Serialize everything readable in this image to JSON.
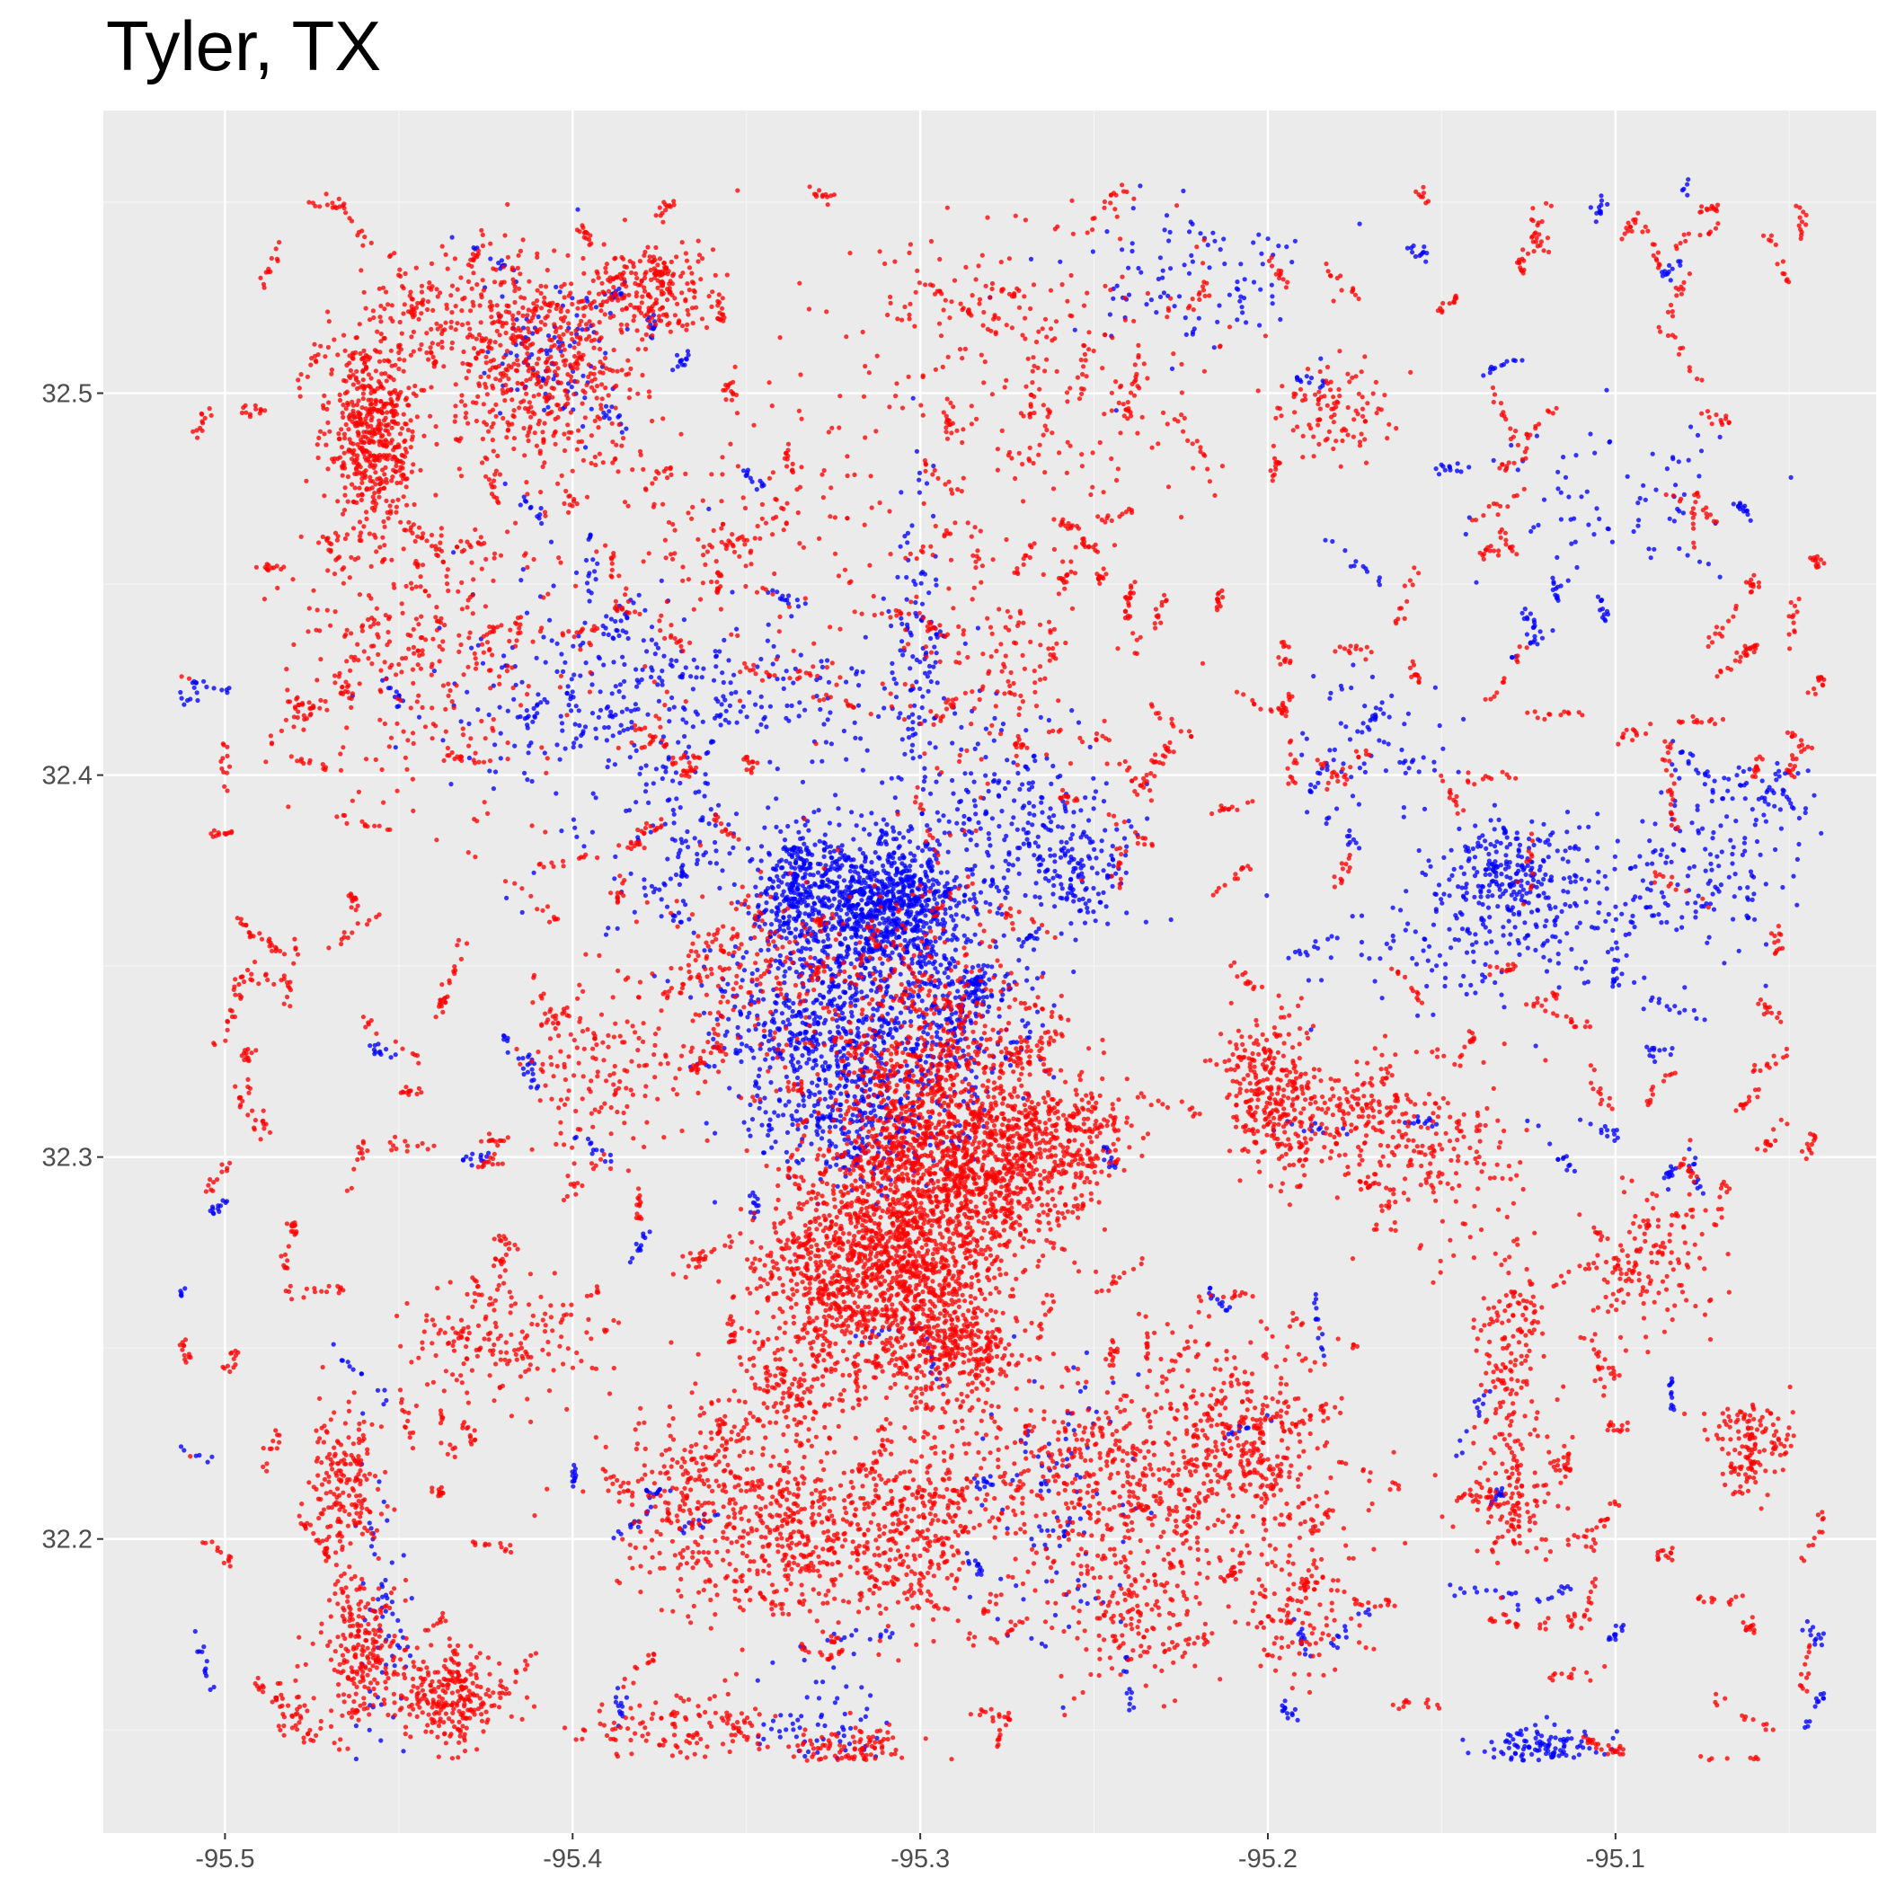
{
  "title": "Tyler, TX",
  "colors": {
    "panel_background": "#EBEBEB",
    "grid_major": "#FFFFFF",
    "grid_minor": "#F5F5F5",
    "tick_text": "#4D4D4D",
    "series_red": "#FF0000",
    "series_blue": "#0000FF"
  },
  "chart_data": {
    "type": "scatter",
    "title": "Tyler, TX",
    "xlabel": "",
    "ylabel": "",
    "xlim": [
      -95.535,
      -95.025
    ],
    "ylim": [
      32.123,
      32.574
    ],
    "x_ticks": [
      -95.5,
      -95.4,
      -95.3,
      -95.2,
      -95.1
    ],
    "x_tick_labels": [
      "-95.5",
      "-95.4",
      "-95.3",
      "-95.2",
      "-95.1"
    ],
    "y_ticks": [
      32.2,
      32.3,
      32.4,
      32.5
    ],
    "y_tick_labels": [
      "32.2",
      "32.3",
      "32.4",
      "32.5"
    ],
    "grid": true,
    "legend": "none",
    "series": [
      {
        "color": "#FF0000",
        "clusters": [
          {
            "x": -95.458,
            "y": 32.49,
            "sx": 0.006,
            "sy": 0.014,
            "n": 520
          },
          {
            "x": -95.405,
            "y": 32.505,
            "sx": 0.014,
            "sy": 0.014,
            "n": 420
          },
          {
            "x": -95.378,
            "y": 32.528,
            "sx": 0.01,
            "sy": 0.006,
            "n": 200
          },
          {
            "x": -95.43,
            "y": 32.52,
            "sx": 0.012,
            "sy": 0.01,
            "n": 150
          },
          {
            "x": -95.3,
            "y": 32.32,
            "sx": 0.016,
            "sy": 0.022,
            "n": 800
          },
          {
            "x": -95.285,
            "y": 32.3,
            "sx": 0.015,
            "sy": 0.015,
            "n": 500
          },
          {
            "x": -95.32,
            "y": 32.27,
            "sx": 0.014,
            "sy": 0.01,
            "n": 650
          },
          {
            "x": -95.295,
            "y": 32.265,
            "sx": 0.01,
            "sy": 0.018,
            "n": 550
          },
          {
            "x": -95.278,
            "y": 32.295,
            "sx": 0.01,
            "sy": 0.012,
            "n": 300
          },
          {
            "x": -95.258,
            "y": 32.305,
            "sx": 0.01,
            "sy": 0.008,
            "n": 250
          },
          {
            "x": -95.288,
            "y": 32.25,
            "sx": 0.008,
            "sy": 0.005,
            "n": 150
          },
          {
            "x": -95.335,
            "y": 32.24,
            "sx": 0.01,
            "sy": 0.01,
            "n": 200
          },
          {
            "x": -95.31,
            "y": 32.29,
            "sx": 0.01,
            "sy": 0.01,
            "n": 250
          },
          {
            "x": -95.24,
            "y": 32.215,
            "sx": 0.025,
            "sy": 0.015,
            "n": 600
          },
          {
            "x": -95.205,
            "y": 32.225,
            "sx": 0.012,
            "sy": 0.012,
            "n": 250
          },
          {
            "x": -95.36,
            "y": 32.21,
            "sx": 0.015,
            "sy": 0.015,
            "n": 350
          },
          {
            "x": -95.33,
            "y": 32.2,
            "sx": 0.014,
            "sy": 0.01,
            "n": 300
          },
          {
            "x": -95.3,
            "y": 32.2,
            "sx": 0.008,
            "sy": 0.012,
            "n": 200
          },
          {
            "x": -95.462,
            "y": 32.17,
            "sx": 0.006,
            "sy": 0.01,
            "n": 200
          },
          {
            "x": -95.465,
            "y": 32.215,
            "sx": 0.005,
            "sy": 0.01,
            "n": 150
          },
          {
            "x": -95.435,
            "y": 32.158,
            "sx": 0.008,
            "sy": 0.006,
            "n": 250
          },
          {
            "x": -95.2,
            "y": 32.318,
            "sx": 0.006,
            "sy": 0.01,
            "n": 250
          },
          {
            "x": -95.178,
            "y": 32.31,
            "sx": 0.012,
            "sy": 0.008,
            "n": 180
          },
          {
            "x": -95.13,
            "y": 32.21,
            "sx": 0.006,
            "sy": 0.008,
            "n": 120
          },
          {
            "x": -95.13,
            "y": 32.245,
            "sx": 0.005,
            "sy": 0.015,
            "n": 150
          },
          {
            "x": -95.06,
            "y": 32.225,
            "sx": 0.006,
            "sy": 0.006,
            "n": 120
          },
          {
            "x": -95.18,
            "y": 32.495,
            "sx": 0.008,
            "sy": 0.006,
            "n": 100
          },
          {
            "x": -95.35,
            "y": 32.35,
            "sx": 0.015,
            "sy": 0.012,
            "n": 200
          },
          {
            "x": -95.39,
            "y": 32.32,
            "sx": 0.012,
            "sy": 0.012,
            "n": 150
          },
          {
            "x": -95.42,
            "y": 32.25,
            "sx": 0.015,
            "sy": 0.008,
            "n": 150
          },
          {
            "x": -95.15,
            "y": 32.3,
            "sx": 0.012,
            "sy": 0.012,
            "n": 150
          },
          {
            "x": -95.09,
            "y": 32.27,
            "sx": 0.01,
            "sy": 0.01,
            "n": 120
          },
          {
            "x": -95.44,
            "y": 32.43,
            "sx": 0.02,
            "sy": 0.02,
            "n": 250
          },
          {
            "x": -95.35,
            "y": 32.46,
            "sx": 0.02,
            "sy": 0.02,
            "n": 150
          },
          {
            "x": -95.27,
            "y": 32.51,
            "sx": 0.03,
            "sy": 0.025,
            "n": 250
          },
          {
            "x": -95.19,
            "y": 32.18,
            "sx": 0.01,
            "sy": 0.01,
            "n": 120
          },
          {
            "x": -95.24,
            "y": 32.18,
            "sx": 0.01,
            "sy": 0.01,
            "n": 150
          },
          {
            "x": -95.28,
            "y": 32.43,
            "sx": 0.015,
            "sy": 0.015,
            "n": 120
          },
          {
            "x": -95.37,
            "y": 32.15,
            "sx": 0.015,
            "sy": 0.005,
            "n": 120
          },
          {
            "x": -95.32,
            "y": 32.145,
            "sx": 0.01,
            "sy": 0.003,
            "n": 100
          }
        ],
        "background_count": 4200
      },
      {
        "color": "#0000FF",
        "clusters": [
          {
            "x": -95.31,
            "y": 32.365,
            "sx": 0.012,
            "sy": 0.01,
            "n": 900
          },
          {
            "x": -95.335,
            "y": 32.37,
            "sx": 0.007,
            "sy": 0.008,
            "n": 300
          },
          {
            "x": -95.33,
            "y": 32.335,
            "sx": 0.015,
            "sy": 0.01,
            "n": 450
          },
          {
            "x": -95.315,
            "y": 32.31,
            "sx": 0.016,
            "sy": 0.009,
            "n": 350
          },
          {
            "x": -95.29,
            "y": 32.34,
            "sx": 0.012,
            "sy": 0.01,
            "n": 300
          },
          {
            "x": -95.255,
            "y": 32.375,
            "sx": 0.008,
            "sy": 0.008,
            "n": 150
          },
          {
            "x": -95.275,
            "y": 32.395,
            "sx": 0.015,
            "sy": 0.01,
            "n": 150
          },
          {
            "x": -95.13,
            "y": 32.375,
            "sx": 0.01,
            "sy": 0.006,
            "n": 200
          },
          {
            "x": -95.13,
            "y": 32.36,
            "sx": 0.025,
            "sy": 0.01,
            "n": 200
          },
          {
            "x": -95.08,
            "y": 32.37,
            "sx": 0.02,
            "sy": 0.01,
            "n": 120
          },
          {
            "x": -95.06,
            "y": 32.395,
            "sx": 0.015,
            "sy": 0.005,
            "n": 80
          },
          {
            "x": -95.1,
            "y": 32.47,
            "sx": 0.02,
            "sy": 0.01,
            "n": 80
          },
          {
            "x": -95.3,
            "y": 32.43,
            "sx": 0.005,
            "sy": 0.02,
            "n": 120
          },
          {
            "x": -95.36,
            "y": 32.42,
            "sx": 0.03,
            "sy": 0.01,
            "n": 200
          },
          {
            "x": -95.4,
            "y": 32.42,
            "sx": 0.02,
            "sy": 0.02,
            "n": 150
          },
          {
            "x": -95.12,
            "y": 32.145,
            "sx": 0.008,
            "sy": 0.003,
            "n": 120
          },
          {
            "x": -95.405,
            "y": 32.51,
            "sx": 0.01,
            "sy": 0.01,
            "n": 100
          },
          {
            "x": -95.22,
            "y": 32.53,
            "sx": 0.02,
            "sy": 0.01,
            "n": 100
          },
          {
            "x": -95.26,
            "y": 32.21,
            "sx": 0.01,
            "sy": 0.02,
            "n": 100
          },
          {
            "x": -95.455,
            "y": 32.18,
            "sx": 0.004,
            "sy": 0.02,
            "n": 60
          },
          {
            "x": -95.33,
            "y": 32.15,
            "sx": 0.01,
            "sy": 0.01,
            "n": 80
          },
          {
            "x": -95.17,
            "y": 32.41,
            "sx": 0.01,
            "sy": 0.01,
            "n": 60
          },
          {
            "x": -95.37,
            "y": 32.385,
            "sx": 0.01,
            "sy": 0.015,
            "n": 100
          }
        ],
        "background_count": 1100
      }
    ]
  }
}
